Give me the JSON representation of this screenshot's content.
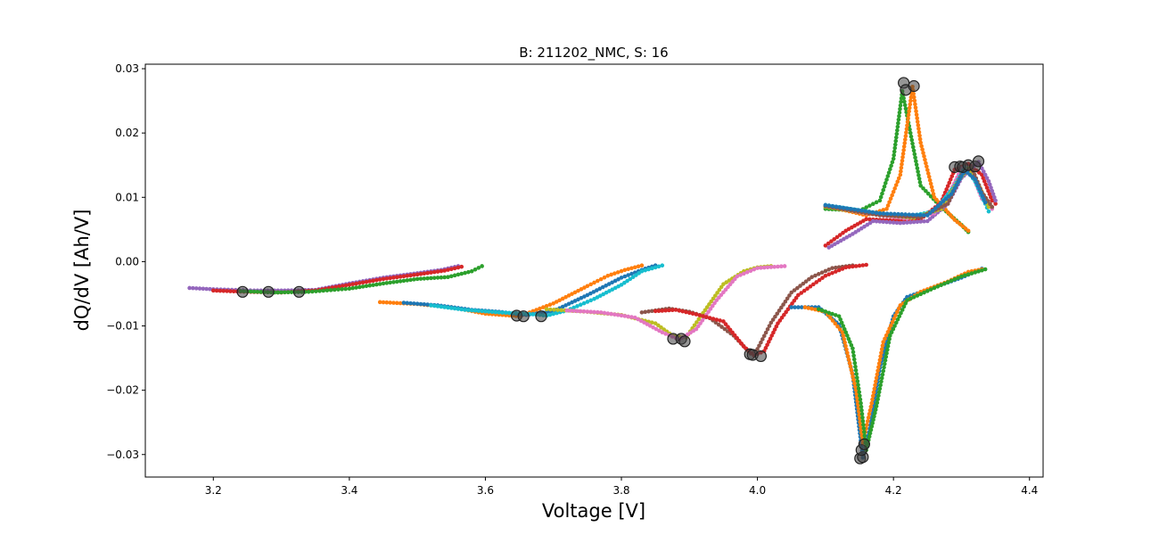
{
  "chart_data": {
    "type": "scatter",
    "title": "B: 211202_NMC, S: 16",
    "xlabel": "Voltage [V]",
    "ylabel": "dQ/dV [Ah/V]",
    "xlim": [
      3.1,
      4.42
    ],
    "ylim": [
      -0.0335,
      0.0307
    ],
    "xticks": [
      3.2,
      3.4,
      3.6,
      3.8,
      4.0,
      4.2,
      4.4
    ],
    "xtick_labels": [
      "3.2",
      "3.4",
      "3.6",
      "3.8",
      "4.0",
      "4.2",
      "4.4"
    ],
    "yticks": [
      -0.03,
      -0.02,
      -0.01,
      0.0,
      0.01,
      0.02,
      0.03
    ],
    "ytick_labels": [
      "−0.03",
      "−0.02",
      "−0.01",
      "0.00",
      "0.01",
      "0.02",
      "0.03"
    ],
    "grid": false,
    "legend": "none",
    "peak_marker_color": "#404040",
    "series": [
      {
        "color": "#9467bd",
        "points": [
          [
            3.165,
            -0.0041
          ],
          [
            3.2,
            -0.0043
          ],
          [
            3.26,
            -0.0045
          ],
          [
            3.3,
            -0.0045
          ],
          [
            3.35,
            -0.0044
          ],
          [
            3.4,
            -0.0034
          ],
          [
            3.45,
            -0.0025
          ],
          [
            3.5,
            -0.0018
          ],
          [
            3.535,
            -0.0013
          ],
          [
            3.56,
            -0.0007
          ]
        ]
      },
      {
        "color": "#d62728",
        "points": [
          [
            3.2,
            -0.0045
          ],
          [
            3.25,
            -0.0047
          ],
          [
            3.3,
            -0.0048
          ],
          [
            3.35,
            -0.0045
          ],
          [
            3.4,
            -0.0036
          ],
          [
            3.45,
            -0.0027
          ],
          [
            3.5,
            -0.002
          ],
          [
            3.54,
            -0.0014
          ],
          [
            3.565,
            -0.0008
          ]
        ]
      },
      {
        "color": "#2ca02c",
        "points": [
          [
            3.24,
            -0.0046
          ],
          [
            3.29,
            -0.0048
          ],
          [
            3.34,
            -0.0047
          ],
          [
            3.4,
            -0.0042
          ],
          [
            3.45,
            -0.0034
          ],
          [
            3.5,
            -0.0027
          ],
          [
            3.545,
            -0.0024
          ],
          [
            3.58,
            -0.0015
          ],
          [
            3.595,
            -0.0007
          ]
        ]
      },
      {
        "color": "#ff7f0e",
        "points": [
          [
            3.445,
            -0.0063
          ],
          [
            3.5,
            -0.0066
          ],
          [
            3.55,
            -0.0071
          ],
          [
            3.6,
            -0.0081
          ],
          [
            3.65,
            -0.0085
          ],
          [
            3.7,
            -0.0065
          ],
          [
            3.75,
            -0.0038
          ],
          [
            3.78,
            -0.0022
          ],
          [
            3.805,
            -0.0013
          ],
          [
            3.83,
            -0.0006
          ]
        ]
      },
      {
        "color": "#1f77b4",
        "points": [
          [
            3.48,
            -0.0064
          ],
          [
            3.53,
            -0.0068
          ],
          [
            3.58,
            -0.0075
          ],
          [
            3.62,
            -0.0078
          ],
          [
            3.66,
            -0.0083
          ],
          [
            3.7,
            -0.0077
          ],
          [
            3.75,
            -0.0052
          ],
          [
            3.8,
            -0.0025
          ],
          [
            3.835,
            -0.0011
          ],
          [
            3.85,
            -0.0006
          ]
        ]
      },
      {
        "color": "#17becf",
        "points": [
          [
            3.52,
            -0.0068
          ],
          [
            3.57,
            -0.0075
          ],
          [
            3.62,
            -0.0079
          ],
          [
            3.66,
            -0.0081
          ],
          [
            3.69,
            -0.0084
          ],
          [
            3.72,
            -0.0076
          ],
          [
            3.76,
            -0.0058
          ],
          [
            3.8,
            -0.0036
          ],
          [
            3.83,
            -0.0015
          ],
          [
            3.86,
            -0.0006
          ]
        ]
      },
      {
        "color": "#bcbd22",
        "points": [
          [
            3.69,
            -0.0074
          ],
          [
            3.75,
            -0.0078
          ],
          [
            3.8,
            -0.0083
          ],
          [
            3.85,
            -0.0096
          ],
          [
            3.875,
            -0.0115
          ],
          [
            3.895,
            -0.0118
          ],
          [
            3.92,
            -0.008
          ],
          [
            3.95,
            -0.0035
          ],
          [
            3.98,
            -0.0015
          ],
          [
            4.0,
            -0.0009
          ],
          [
            4.02,
            -0.0007
          ]
        ]
      },
      {
        "color": "#e377c2",
        "points": [
          [
            3.72,
            -0.0076
          ],
          [
            3.77,
            -0.0079
          ],
          [
            3.82,
            -0.0087
          ],
          [
            3.86,
            -0.011
          ],
          [
            3.885,
            -0.0121
          ],
          [
            3.91,
            -0.0105
          ],
          [
            3.94,
            -0.006
          ],
          [
            3.97,
            -0.0023
          ],
          [
            4.0,
            -0.001
          ],
          [
            4.04,
            -0.0007
          ]
        ]
      },
      {
        "color": "#8c564b",
        "points": [
          [
            3.83,
            -0.0079
          ],
          [
            3.87,
            -0.0073
          ],
          [
            3.9,
            -0.0078
          ],
          [
            3.93,
            -0.0088
          ],
          [
            3.965,
            -0.0115
          ],
          [
            3.99,
            -0.0143
          ],
          [
            4.0,
            -0.0136
          ],
          [
            4.02,
            -0.0095
          ],
          [
            4.05,
            -0.0048
          ],
          [
            4.08,
            -0.0024
          ],
          [
            4.11,
            -0.001
          ],
          [
            4.14,
            -0.0006
          ]
        ]
      },
      {
        "color": "#d62728",
        "points": [
          [
            3.85,
            -0.0077
          ],
          [
            3.88,
            -0.0075
          ],
          [
            3.91,
            -0.0082
          ],
          [
            3.95,
            -0.0093
          ],
          [
            3.98,
            -0.0132
          ],
          [
            3.995,
            -0.0146
          ],
          [
            4.01,
            -0.0139
          ],
          [
            4.03,
            -0.0096
          ],
          [
            4.06,
            -0.0052
          ],
          [
            4.1,
            -0.0022
          ],
          [
            4.13,
            -0.0009
          ],
          [
            4.16,
            -0.0005
          ]
        ]
      },
      {
        "color": "#1f77b4",
        "points": [
          [
            4.05,
            -0.0071
          ],
          [
            4.09,
            -0.0071
          ],
          [
            4.12,
            -0.0098
          ],
          [
            4.14,
            -0.0175
          ],
          [
            4.155,
            -0.0305
          ],
          [
            4.165,
            -0.026
          ],
          [
            4.18,
            -0.0165
          ],
          [
            4.2,
            -0.0085
          ],
          [
            4.22,
            -0.0055
          ],
          [
            4.26,
            -0.004
          ],
          [
            4.3,
            -0.0025
          ],
          [
            4.33,
            -0.0011
          ]
        ]
      },
      {
        "color": "#ff7f0e",
        "points": [
          [
            4.07,
            -0.0071
          ],
          [
            4.1,
            -0.0078
          ],
          [
            4.125,
            -0.011
          ],
          [
            4.145,
            -0.02
          ],
          [
            4.155,
            -0.0282
          ],
          [
            4.168,
            -0.022
          ],
          [
            4.185,
            -0.0125
          ],
          [
            4.21,
            -0.0068
          ],
          [
            4.24,
            -0.0047
          ],
          [
            4.28,
            -0.0031
          ],
          [
            4.31,
            -0.0016
          ],
          [
            4.33,
            -0.0012
          ]
        ]
      },
      {
        "color": "#2ca02c",
        "points": [
          [
            4.09,
            -0.0074
          ],
          [
            4.12,
            -0.0085
          ],
          [
            4.14,
            -0.0135
          ],
          [
            4.152,
            -0.022
          ],
          [
            4.16,
            -0.0293
          ],
          [
            4.175,
            -0.0225
          ],
          [
            4.195,
            -0.0115
          ],
          [
            4.22,
            -0.006
          ],
          [
            4.26,
            -0.0041
          ],
          [
            4.3,
            -0.0023
          ],
          [
            4.335,
            -0.0012
          ]
        ]
      },
      {
        "color": "#2ca02c",
        "points": [
          [
            4.1,
            0.0082
          ],
          [
            4.15,
            0.0079
          ],
          [
            4.18,
            0.0095
          ],
          [
            4.2,
            0.016
          ],
          [
            4.213,
            0.0265
          ],
          [
            4.225,
            0.02
          ],
          [
            4.24,
            0.0118
          ],
          [
            4.27,
            0.0085
          ],
          [
            4.3,
            0.0057
          ],
          [
            4.31,
            0.0046
          ]
        ]
      },
      {
        "color": "#ff7f0e",
        "points": [
          [
            4.1,
            0.0087
          ],
          [
            4.16,
            0.0072
          ],
          [
            4.19,
            0.0082
          ],
          [
            4.21,
            0.0135
          ],
          [
            4.228,
            0.0272
          ],
          [
            4.24,
            0.0185
          ],
          [
            4.26,
            0.01
          ],
          [
            4.29,
            0.0065
          ],
          [
            4.31,
            0.0048
          ]
        ]
      },
      {
        "color": "#d62728",
        "points": [
          [
            4.1,
            0.0025
          ],
          [
            4.13,
            0.0048
          ],
          [
            4.16,
            0.0066
          ],
          [
            4.2,
            0.0064
          ],
          [
            4.24,
            0.0066
          ],
          [
            4.27,
            0.0092
          ],
          [
            4.29,
            0.0143
          ],
          [
            4.31,
            0.0152
          ],
          [
            4.33,
            0.0135
          ],
          [
            4.345,
            0.0095
          ],
          [
            4.35,
            0.009
          ]
        ]
      },
      {
        "color": "#9467bd",
        "points": [
          [
            4.105,
            0.0022
          ],
          [
            4.14,
            0.0043
          ],
          [
            4.17,
            0.0063
          ],
          [
            4.21,
            0.006
          ],
          [
            4.25,
            0.0063
          ],
          [
            4.28,
            0.009
          ],
          [
            4.3,
            0.013
          ],
          [
            4.325,
            0.0155
          ],
          [
            4.34,
            0.0125
          ],
          [
            4.35,
            0.0095
          ]
        ]
      },
      {
        "color": "#e377c2",
        "points": [
          [
            4.1,
            0.0087
          ],
          [
            4.16,
            0.0075
          ],
          [
            4.22,
            0.0067
          ],
          [
            4.26,
            0.0075
          ],
          [
            4.285,
            0.0112
          ],
          [
            4.3,
            0.0145
          ],
          [
            4.315,
            0.0138
          ],
          [
            4.33,
            0.0098
          ],
          [
            4.345,
            0.0082
          ]
        ]
      },
      {
        "color": "#17becf",
        "points": [
          [
            4.1,
            0.0088
          ],
          [
            4.16,
            0.0078
          ],
          [
            4.22,
            0.007
          ],
          [
            4.26,
            0.0078
          ],
          [
            4.29,
            0.0118
          ],
          [
            4.305,
            0.0147
          ],
          [
            4.32,
            0.0125
          ],
          [
            4.335,
            0.009
          ],
          [
            4.34,
            0.0078
          ]
        ]
      },
      {
        "color": "#bcbd22",
        "points": [
          [
            4.1,
            0.0085
          ],
          [
            4.17,
            0.0074
          ],
          [
            4.23,
            0.0068
          ],
          [
            4.27,
            0.0082
          ],
          [
            4.295,
            0.0125
          ],
          [
            4.31,
            0.0145
          ],
          [
            4.325,
            0.012
          ],
          [
            4.34,
            0.0085
          ]
        ]
      },
      {
        "color": "#8c564b",
        "points": [
          [
            4.1,
            0.0086
          ],
          [
            4.18,
            0.0072
          ],
          [
            4.24,
            0.0069
          ],
          [
            4.28,
            0.009
          ],
          [
            4.3,
            0.0135
          ],
          [
            4.315,
            0.0146
          ],
          [
            4.33,
            0.0108
          ],
          [
            4.345,
            0.0085
          ]
        ]
      },
      {
        "color": "#1f77b4",
        "points": [
          [
            4.1,
            0.0088
          ],
          [
            4.18,
            0.0075
          ],
          [
            4.25,
            0.0072
          ],
          [
            4.285,
            0.0105
          ],
          [
            4.305,
            0.0142
          ],
          [
            4.32,
            0.0128
          ],
          [
            4.335,
            0.0092
          ]
        ]
      }
    ],
    "peaks": [
      [
        3.243,
        -0.0047
      ],
      [
        3.281,
        -0.0047
      ],
      [
        3.326,
        -0.0047
      ],
      [
        3.646,
        -0.0084
      ],
      [
        3.656,
        -0.0085
      ],
      [
        3.682,
        -0.0085
      ],
      [
        3.876,
        -0.012
      ],
      [
        3.888,
        -0.012
      ],
      [
        3.893,
        -0.0124
      ],
      [
        3.989,
        -0.0144
      ],
      [
        3.993,
        -0.0145
      ],
      [
        4.005,
        -0.0147
      ],
      [
        4.151,
        -0.0306
      ],
      [
        4.155,
        -0.0304
      ],
      [
        4.153,
        -0.0293
      ],
      [
        4.157,
        -0.0284
      ],
      [
        4.215,
        0.0278
      ],
      [
        4.218,
        0.0267
      ],
      [
        4.23,
        0.0273
      ],
      [
        4.29,
        0.0147
      ],
      [
        4.298,
        0.0148
      ],
      [
        4.302,
        0.0147
      ],
      [
        4.31,
        0.015
      ],
      [
        4.32,
        0.0148
      ],
      [
        4.325,
        0.0156
      ]
    ]
  }
}
